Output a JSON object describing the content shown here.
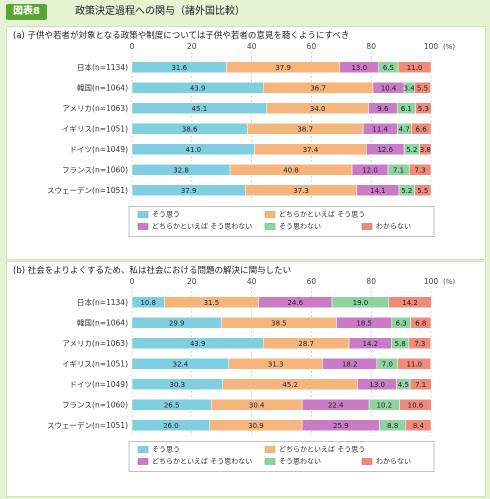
{
  "figure": {
    "label": "図表8",
    "title": "政策決定過程への関与（諸外国比較）"
  },
  "colors": {
    "series": [
      "#7fcfe0",
      "#f5b57d",
      "#c97bc6",
      "#8fd3a0",
      "#f08a7a"
    ],
    "outline": [
      "#4aa9c2",
      "#e08a3a",
      "#a04ca0",
      "#58b06a",
      "#d0533f"
    ]
  },
  "chart_data": [
    {
      "type": "bar",
      "orientation": "horizontal",
      "stacked": true,
      "title": "(a) 子供や若者が対象となる政策や制度については子供や若者の意見を聴くようにすべき",
      "x_axis": {
        "ticks": [
          "0",
          "20",
          "40",
          "60",
          "80",
          "100"
        ],
        "unit": "(%)",
        "range": [
          0,
          100
        ]
      },
      "categories": [
        "日本(n=1134)",
        "韓国(n=1064)",
        "アメリカ(n=1063)",
        "イギリス(n=1051)",
        "ドイツ(n=1049)",
        "フランス(n=1060)",
        "スウェーデン(n=1051)"
      ],
      "series": [
        {
          "name": "そう思う",
          "values": [
            31.6,
            43.9,
            45.1,
            38.6,
            41.0,
            32.8,
            37.9
          ]
        },
        {
          "name": "どちらかといえば そう思う",
          "values": [
            37.9,
            36.7,
            34.0,
            38.7,
            37.4,
            40.8,
            37.3
          ]
        },
        {
          "name": "どちらかといえば そう思わない",
          "values": [
            13.0,
            10.4,
            9.6,
            11.4,
            12.6,
            12.0,
            14.1
          ]
        },
        {
          "name": "そう思わない",
          "values": [
            6.5,
            3.4,
            6.1,
            4.7,
            5.2,
            7.1,
            5.2
          ]
        },
        {
          "name": "わからない",
          "values": [
            11.0,
            5.5,
            5.3,
            6.6,
            3.8,
            7.3,
            5.5
          ]
        }
      ],
      "grid": "vertical dashed",
      "legend_position": "bottom"
    },
    {
      "type": "bar",
      "orientation": "horizontal",
      "stacked": true,
      "title": "(b) 社会をよりよくするため、私は社会における問題の解決に関与したい",
      "x_axis": {
        "ticks": [
          "0",
          "20",
          "40",
          "60",
          "80",
          "100"
        ],
        "unit": "(%)",
        "range": [
          0,
          100
        ]
      },
      "categories": [
        "日本(n=1134)",
        "韓国(n=1064)",
        "アメリカ(n=1063)",
        "イギリス(n=1051)",
        "ドイツ(n=1049)",
        "フランス(n=1060)",
        "スウェーデン(n=1051)"
      ],
      "series": [
        {
          "name": "そう思う",
          "values": [
            10.8,
            29.9,
            43.9,
            32.4,
            30.3,
            26.5,
            26.0
          ]
        },
        {
          "name": "どちらかといえば そう思う",
          "values": [
            31.5,
            38.5,
            28.7,
            31.3,
            45.2,
            30.4,
            30.9
          ]
        },
        {
          "name": "どちらかといえば そう思わない",
          "values": [
            24.6,
            18.5,
            14.2,
            18.2,
            13.0,
            22.4,
            25.9
          ]
        },
        {
          "name": "そう思わない",
          "values": [
            19.0,
            6.3,
            5.8,
            7.0,
            4.5,
            10.2,
            8.8
          ]
        },
        {
          "name": "わからない",
          "values": [
            14.2,
            6.8,
            7.3,
            11.0,
            7.1,
            10.6,
            8.4
          ]
        }
      ],
      "grid": "vertical dashed",
      "legend_position": "bottom"
    }
  ]
}
